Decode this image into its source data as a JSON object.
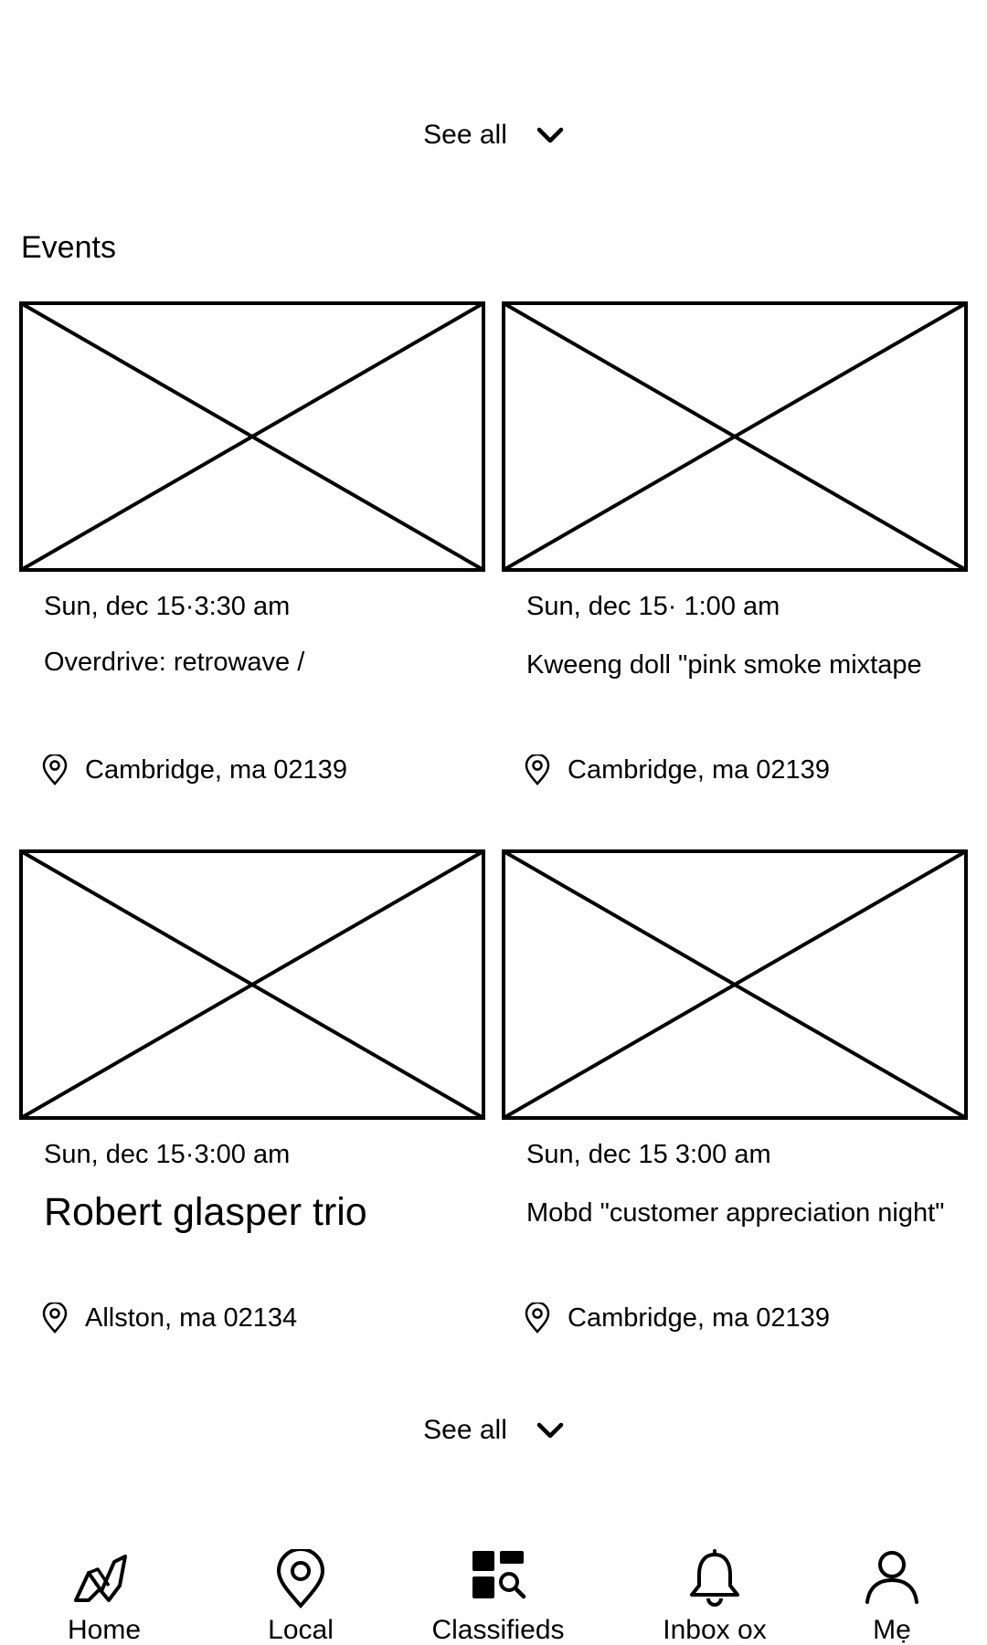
{
  "top_see_all": {
    "label": "See all",
    "icon": "chevron-down-icon"
  },
  "events": {
    "title": "Events",
    "cards": [
      {
        "date": "Sun, dec 15·3:30 am",
        "title": "Overdrive: retrowave /",
        "location": "Cambridge, ma 02139"
      },
      {
        "date": "Sun, dec 15· 1:00 am",
        "title": "Kweeng doll \"pink smoke mixtape",
        "location": "Cambridge, ma 02139"
      },
      {
        "date": "Sun, dec 15·3:00 am",
        "title": "Robert glasper trio",
        "location": "Allston, ma 02134"
      },
      {
        "date": "Sun, dec 15 3:00 am",
        "title": "Mobd \"customer appreciation night\"",
        "location": "Cambridge, ma 02139"
      }
    ],
    "see_all": {
      "label": "See all",
      "icon": "chevron-down-icon"
    }
  },
  "tabbar": {
    "tabs": [
      {
        "label": "Home",
        "icon": "home-logo-icon"
      },
      {
        "label": "Local",
        "icon": "location-pin-icon"
      },
      {
        "label": "Classifieds",
        "icon": "classifieds-grid-search-icon"
      },
      {
        "label": "Inbox ox",
        "icon": "bell-icon"
      },
      {
        "label": "Mẹ",
        "icon": "person-icon"
      }
    ]
  }
}
